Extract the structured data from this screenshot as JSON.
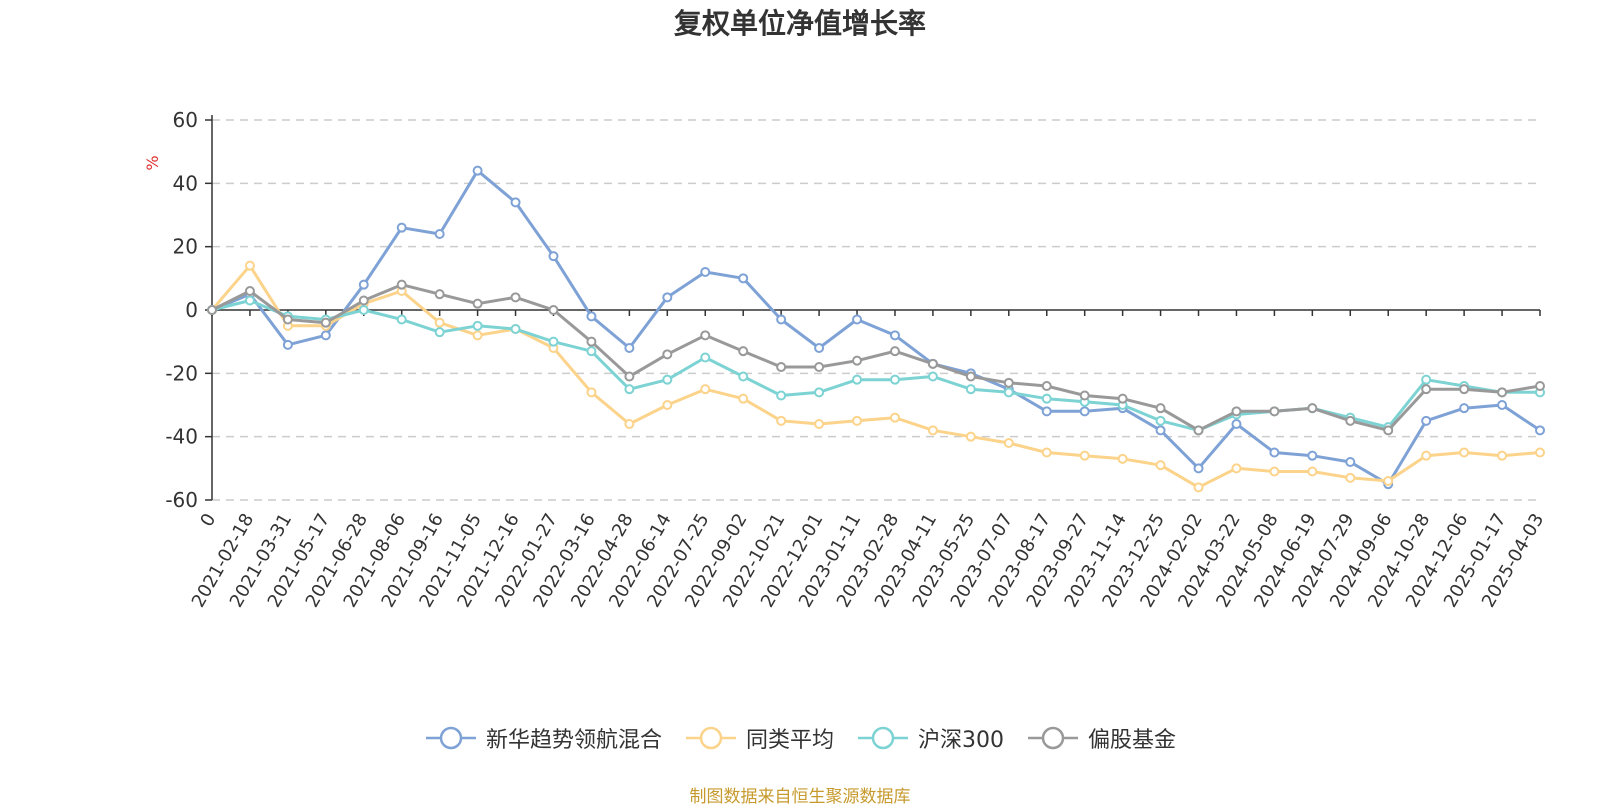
{
  "chart_data": {
    "type": "line",
    "title": "复权单位净值增长率",
    "ylabel": "%",
    "xlabel": "",
    "ylim": [
      -60,
      60
    ],
    "yticks": [
      60,
      40,
      20,
      0,
      -20,
      -40,
      -60
    ],
    "grid": true,
    "legend_position": "bottom-center",
    "categories": [
      "0",
      "2021-02-18",
      "2021-03-31",
      "2021-05-17",
      "2021-06-28",
      "2021-08-06",
      "2021-09-16",
      "2021-11-05",
      "2021-12-16",
      "2022-01-27",
      "2022-03-16",
      "2022-04-28",
      "2022-06-14",
      "2022-07-25",
      "2022-09-02",
      "2022-10-21",
      "2022-12-01",
      "2023-01-11",
      "2023-02-28",
      "2023-04-11",
      "2023-05-25",
      "2023-07-07",
      "2023-08-17",
      "2023-09-27",
      "2023-11-14",
      "2023-12-25",
      "2024-02-02",
      "2024-03-22",
      "2024-05-08",
      "2024-06-19",
      "2024-07-29",
      "2024-09-06",
      "2024-10-28",
      "2024-12-06",
      "2025-01-17",
      "2025-04-03"
    ],
    "series": [
      {
        "name": "新华趋势领航混合",
        "color": "#7ea2d6",
        "values": [
          0,
          5,
          -11,
          -8,
          8,
          26,
          24,
          44,
          34,
          17,
          -2,
          -12,
          4,
          12,
          10,
          -3,
          -12,
          -3,
          -8,
          -17,
          -20,
          -25,
          -32,
          -32,
          -31,
          -38,
          -50,
          -36,
          -45,
          -46,
          -48,
          -55,
          -35,
          -31,
          -30,
          -38
        ]
      },
      {
        "name": "同类平均",
        "color": "#fcd38a",
        "values": [
          0,
          14,
          -5,
          -5,
          2,
          6,
          -4,
          -8,
          -6,
          -12,
          -26,
          -36,
          -30,
          -25,
          -28,
          -35,
          -36,
          -35,
          -34,
          -38,
          -40,
          -42,
          -45,
          -46,
          -47,
          -49,
          -56,
          -50,
          -51,
          -51,
          -53,
          -54,
          -46,
          -45,
          -46,
          -45
        ]
      },
      {
        "name": "沪深300",
        "color": "#7dd3d3",
        "values": [
          0,
          3,
          -2,
          -3,
          0,
          -3,
          -7,
          -5,
          -6,
          -10,
          -13,
          -25,
          -22,
          -15,
          -21,
          -27,
          -26,
          -22,
          -22,
          -21,
          -25,
          -26,
          -28,
          -29,
          -30,
          -35,
          -38,
          -33,
          -32,
          -31,
          -34,
          -37,
          -22,
          -24,
          -26,
          -26
        ]
      },
      {
        "name": "偏股基金",
        "color": "#999999",
        "values": [
          0,
          6,
          -3,
          -4,
          3,
          8,
          5,
          2,
          4,
          0,
          -10,
          -21,
          -14,
          -8,
          -13,
          -18,
          -18,
          -16,
          -13,
          -17,
          -21,
          -23,
          -24,
          -27,
          -28,
          -31,
          -38,
          -32,
          -32,
          -31,
          -35,
          -38,
          -25,
          -25,
          -26,
          -24
        ]
      }
    ]
  },
  "legend_marker_icon": "circle-line-icon",
  "source_note": "制图数据来自恒生聚源数据库"
}
